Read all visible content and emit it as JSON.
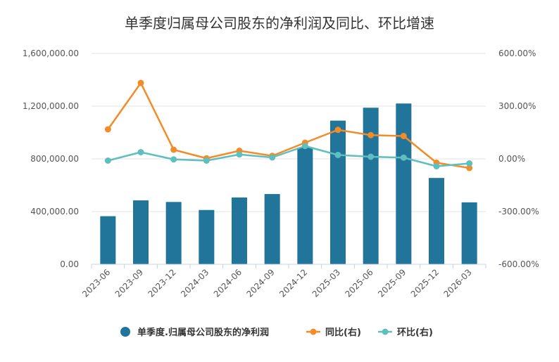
{
  "chart_data": {
    "type": "bar",
    "title": "单季度归属母公司股东的净利润及同比、环比增速",
    "categories": [
      "2023-06",
      "2023-09",
      "2023-12",
      "2024-03",
      "2024-06",
      "2024-09",
      "2024-12",
      "2025-03",
      "2025-06",
      "2025-09",
      "2025-12",
      "2026-03"
    ],
    "y_left": {
      "ylim": [
        0,
        1600000
      ],
      "ticks": [
        0,
        400000,
        800000,
        1200000,
        1600000
      ],
      "tick_labels": [
        "0.00",
        "400,000.00",
        "800,000.00",
        "1,200,000.00",
        "1,600,000.00"
      ]
    },
    "y_right": {
      "ylim": [
        -600,
        600
      ],
      "ticks": [
        -600,
        -300,
        0,
        300,
        600
      ],
      "tick_labels": [
        "-600.00%",
        "-300.00%",
        "0.00%",
        "300.00%",
        "600.00%"
      ]
    },
    "series": [
      {
        "name": "单季度.归属母公司股东的净利润",
        "type": "bar",
        "axis": "left",
        "color": "#21759b",
        "values": [
          365000,
          485000,
          473000,
          412000,
          507000,
          533000,
          885000,
          1090000,
          1188000,
          1220000,
          655000,
          470000
        ]
      },
      {
        "name": "同比(右)",
        "type": "line",
        "axis": "right",
        "color": "#f28c28",
        "values": [
          168,
          432,
          52,
          3,
          46,
          17,
          92,
          165,
          135,
          130,
          -22,
          -52
        ]
      },
      {
        "name": "环比(右)",
        "type": "line",
        "axis": "right",
        "color": "#5fbfbf",
        "values": [
          -10,
          38,
          -3,
          -10,
          25,
          8,
          73,
          22,
          12,
          7,
          -42,
          -26
        ]
      }
    ],
    "grid": true,
    "legend": "bottom"
  }
}
